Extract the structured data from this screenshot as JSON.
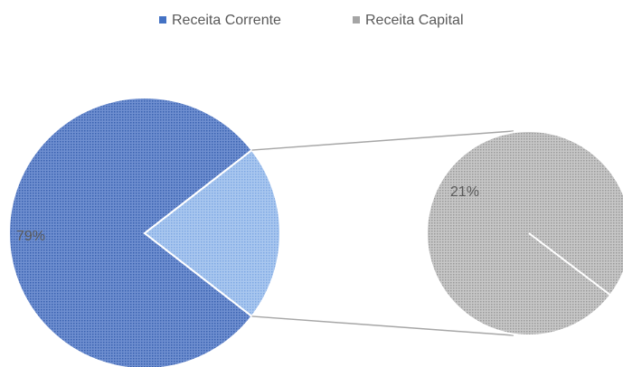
{
  "chart_data": {
    "type": "pie-of-pie",
    "categories": [
      "Receita Corrente",
      "Receita Capital"
    ],
    "values": [
      79,
      21
    ],
    "value_labels": [
      "79%",
      "21%"
    ],
    "colors": [
      "#4472c4",
      "#a5a5a5"
    ],
    "legend": "top"
  }
}
